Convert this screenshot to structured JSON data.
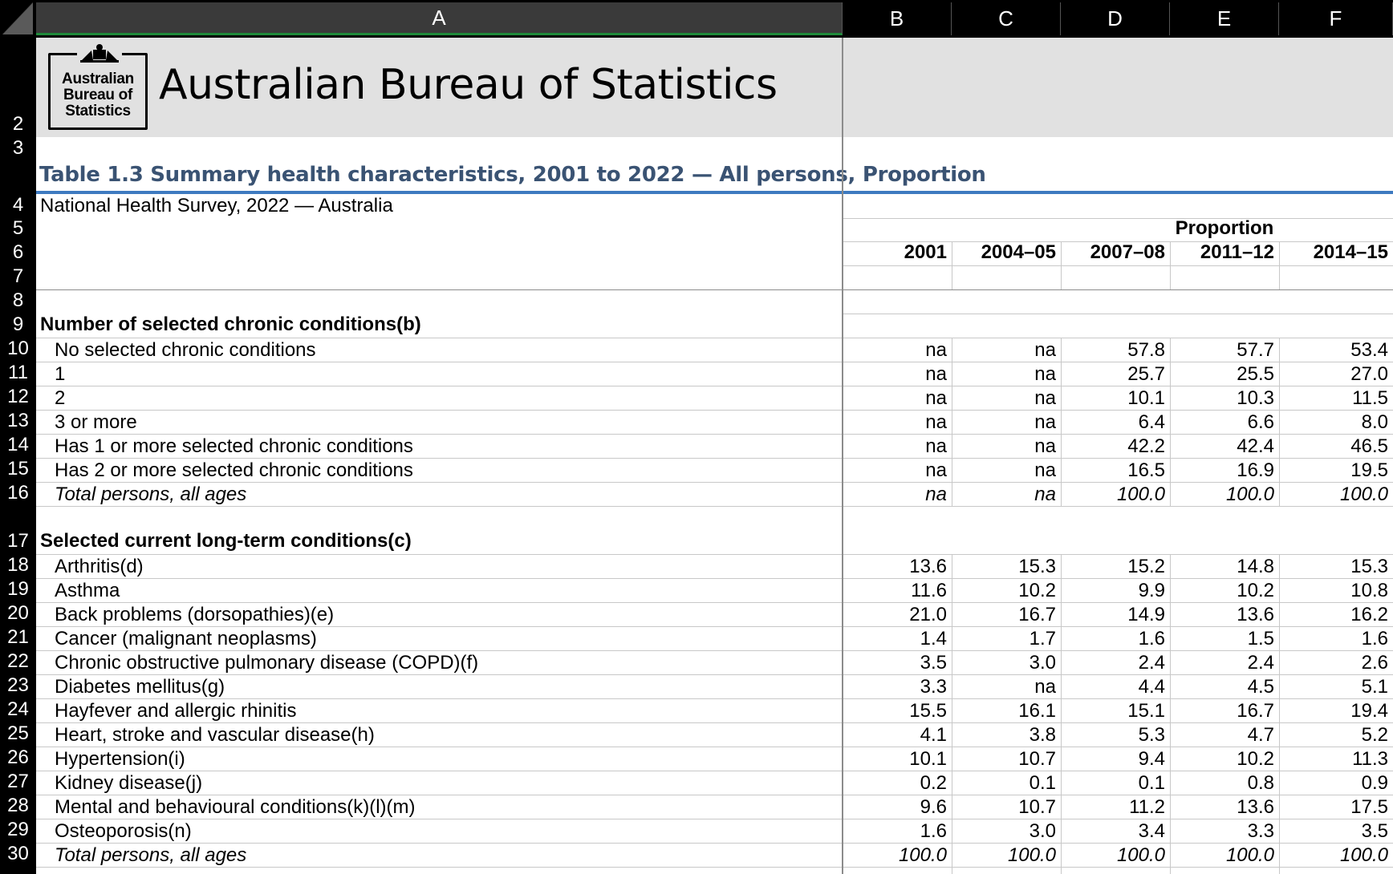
{
  "columns": [
    "A",
    "B",
    "C",
    "D",
    "E",
    "F"
  ],
  "row_numbers": [
    "2",
    "3",
    "4",
    "5",
    "6",
    "7",
    "8",
    "9",
    "10",
    "11",
    "12",
    "13",
    "14",
    "15",
    "16",
    "17",
    "18",
    "19",
    "20",
    "21",
    "22",
    "23",
    "24",
    "25",
    "26",
    "27",
    "28",
    "29",
    "30"
  ],
  "logo": {
    "lines": [
      "Australian",
      "Bureau of",
      "Statistics"
    ]
  },
  "brand": "Australian Bureau of Statistics",
  "table_title": "Table 1.3 Summary health characteristics, 2001 to 2022 — All persons, Proportion",
  "subtitle": "National Health Survey, 2022 — Australia",
  "proportion_label": "Proportion",
  "years": [
    "2001",
    "2004–05",
    "2007–08",
    "2011–12",
    "2014–15"
  ],
  "sections": [
    {
      "heading": "Number of selected chronic conditions(b)",
      "rows": [
        {
          "label": "No selected chronic conditions",
          "values": [
            "na",
            "na",
            "57.8",
            "57.7",
            "53.4"
          ]
        },
        {
          "label": "1",
          "values": [
            "na",
            "na",
            "25.7",
            "25.5",
            "27.0"
          ]
        },
        {
          "label": "2",
          "values": [
            "na",
            "na",
            "10.1",
            "10.3",
            "11.5"
          ]
        },
        {
          "label": "3 or more",
          "values": [
            "na",
            "na",
            "6.4",
            "6.6",
            "8.0"
          ]
        },
        {
          "label": "Has 1 or more selected chronic conditions",
          "values": [
            "na",
            "na",
            "42.2",
            "42.4",
            "46.5"
          ]
        },
        {
          "label": "Has 2 or more selected chronic conditions",
          "values": [
            "na",
            "na",
            "16.5",
            "16.9",
            "19.5"
          ]
        },
        {
          "label": "Total persons, all ages",
          "values": [
            "na",
            "na",
            "100.0",
            "100.0",
            "100.0"
          ],
          "italic": true
        }
      ]
    },
    {
      "heading": "Selected current long-term conditions(c)",
      "rows": [
        {
          "label": "Arthritis(d)",
          "values": [
            "13.6",
            "15.3",
            "15.2",
            "14.8",
            "15.3"
          ]
        },
        {
          "label": "Asthma",
          "values": [
            "11.6",
            "10.2",
            "9.9",
            "10.2",
            "10.8"
          ]
        },
        {
          "label": "Back problems (dorsopathies)(e)",
          "values": [
            "21.0",
            "16.7",
            "14.9",
            "13.6",
            "16.2"
          ]
        },
        {
          "label": "Cancer (malignant neoplasms)",
          "values": [
            "1.4",
            "1.7",
            "1.6",
            "1.5",
            "1.6"
          ]
        },
        {
          "label": "Chronic obstructive pulmonary disease (COPD)(f)",
          "values": [
            "3.5",
            "3.0",
            "2.4",
            "2.4",
            "2.6"
          ]
        },
        {
          "label": "Diabetes mellitus(g)",
          "values": [
            "3.3",
            "na",
            "4.4",
            "4.5",
            "5.1"
          ]
        },
        {
          "label": "Hayfever and allergic rhinitis",
          "values": [
            "15.5",
            "16.1",
            "15.1",
            "16.7",
            "19.4"
          ]
        },
        {
          "label": "Heart, stroke and vascular disease(h)",
          "values": [
            "4.1",
            "3.8",
            "5.3",
            "4.7",
            "5.2"
          ]
        },
        {
          "label": "Hypertension(i)",
          "values": [
            "10.1",
            "10.7",
            "9.4",
            "10.2",
            "11.3"
          ]
        },
        {
          "label": "Kidney disease(j)",
          "values": [
            "0.2",
            "0.1",
            "0.1",
            "0.8",
            "0.9"
          ]
        },
        {
          "label": "Mental and behavioural conditions(k)(l)(m)",
          "values": [
            "9.6",
            "10.7",
            "11.2",
            "13.6",
            "17.5"
          ]
        },
        {
          "label": "Osteoporosis(n)",
          "values": [
            "1.6",
            "3.0",
            "3.4",
            "3.3",
            "3.5"
          ]
        },
        {
          "label": "Total persons, all ages",
          "values": [
            "100.0",
            "100.0",
            "100.0",
            "100.0",
            "100.0"
          ],
          "italic": true
        }
      ]
    }
  ]
}
